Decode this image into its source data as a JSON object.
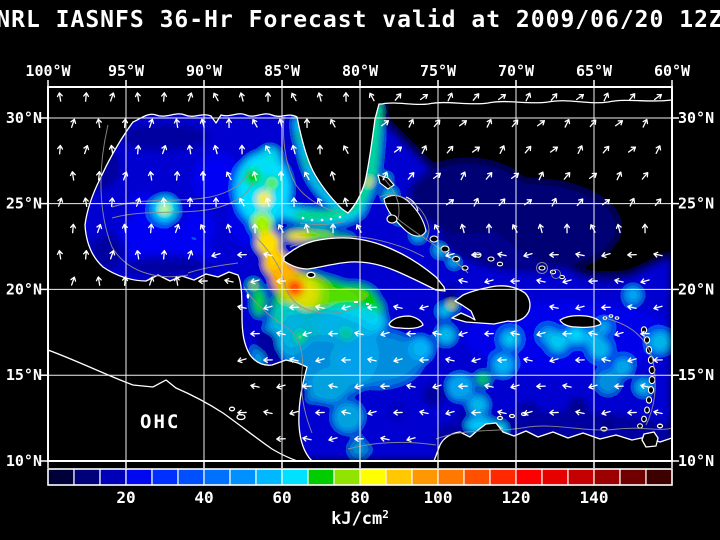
{
  "title": "NRL IASNFS  36-Hr Forecast valid at 2009/06/20 12Z",
  "map": {
    "annotation": "OHC",
    "x_axis": {
      "ticks": [
        "100°W",
        "95°W",
        "90°W",
        "85°W",
        "80°W",
        "75°W",
        "70°W",
        "65°W",
        "60°W"
      ]
    },
    "y_axis_left": {
      "ticks": [
        "30°N",
        "25°N",
        "20°N",
        "15°N",
        "10°N"
      ]
    },
    "y_axis_right": {
      "ticks": [
        "30°N",
        "25°N",
        "20°N",
        "15°N",
        "10°N"
      ]
    }
  },
  "colorbar": {
    "tick_labels": [
      "20",
      "40",
      "60",
      "80",
      "100",
      "120",
      "140"
    ],
    "units_base": "kJ/cm",
    "units_exp": "2",
    "units_label": "kJ/cm²",
    "cell_colors": [
      "#000038",
      "#000078",
      "#0000b8",
      "#0008f0",
      "#0030ff",
      "#0050ff",
      "#0070ff",
      "#0090ff",
      "#00b8ff",
      "#00e0ff",
      "#00cc00",
      "#90e400",
      "#ffff00",
      "#ffc800",
      "#ff9800",
      "#ff7800",
      "#ff5000",
      "#ff2800",
      "#ff0000",
      "#e60000",
      "#c40000",
      "#9c0000",
      "#700000",
      "#3c0000"
    ]
  },
  "wind": {
    "color": "#ffffff",
    "description": "surface wind vectors, predominantly westward (easterly trades); NE-pointing in the open Atlantic, N-pointing over Mexico/Texas"
  },
  "colors": {
    "background": "#000000",
    "frame": "#ffffff",
    "grid": "#f0f0f0",
    "land": "#000000",
    "coastline": "#ffffff",
    "contour": "#909090"
  },
  "chart_data": {
    "type": "heatmap",
    "title": "NRL IASNFS  36-Hr Forecast valid at 2009/06/20 12Z",
    "model": "NRL IASNFS",
    "forecast_hours": 36,
    "valid_time": "2009/06/20 12Z",
    "variable": "Ocean Heat Content (OHC)",
    "units": "kJ/cm²",
    "lon_ticks_deg_w": [
      100,
      95,
      90,
      85,
      80,
      75,
      70,
      65,
      60
    ],
    "lat_ticks_deg_n": [
      30,
      25,
      20,
      15,
      10
    ],
    "grid": true,
    "legend_position": "bottom colorbar",
    "colorbar": {
      "range": [
        0,
        160
      ],
      "tick_values": [
        20,
        40,
        60,
        80,
        100,
        120,
        140
      ],
      "n_cells": 24
    },
    "overlay": "white wind vector arrows on ~2.5° grid",
    "features": [
      {
        "name": "Gulf of Mexico warm-core eddy",
        "approx_lon": "92.5°W",
        "approx_lat": "24.9°N",
        "peak_ohc_kj_cm2": 75
      },
      {
        "name": "Loop Current lobe NW of Cuba",
        "approx_lon": "85.5°W",
        "approx_lat": "25.3°N",
        "peak_ohc_kj_cm2": 70
      },
      {
        "name": "Florida Current / Gulf Stream ribbon along east Florida",
        "approx_lon": "79.5°W",
        "approx_lat": "25-27°N",
        "peak_ohc_kj_cm2": 70
      },
      {
        "name": "Northwest Caribbean warm pool south of Cuba",
        "approx_lon": "81°W",
        "approx_lat": "20°N",
        "peak_ohc_kj_cm2": 115
      },
      {
        "name": "Yucatan Channel warm plume",
        "approx_lon": "85-81°W",
        "approx_lat": "18-23°N",
        "peak_ohc_kj_cm2": 90
      },
      {
        "name": "Subtropical North Atlantic north of 25°N",
        "peak_ohc_kj_cm2": "<15"
      },
      {
        "name": "Central Caribbean basin",
        "peak_ohc_kj_cm2": "40-60"
      },
      {
        "name": "Small warm spot west of Haiti",
        "approx_lon": "74.5°W",
        "approx_lat": "19.8°N",
        "peak_ohc_kj_cm2": 80
      }
    ]
  }
}
